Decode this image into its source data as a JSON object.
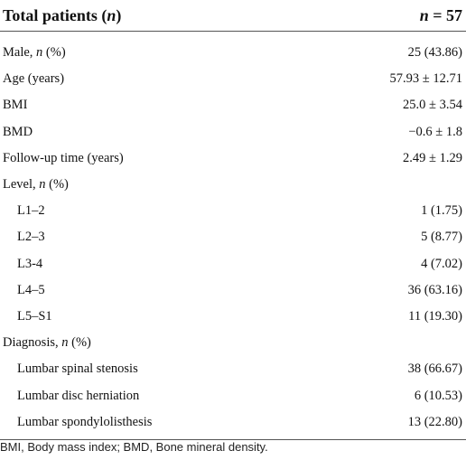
{
  "header": {
    "label": "Total patients (n)",
    "value": "n = 57"
  },
  "rows": [
    {
      "label": "Male, n (%)",
      "value": "25 (43.86)"
    },
    {
      "label": "Age (years)",
      "value": "57.93 ± 12.71"
    },
    {
      "label": "BMI",
      "value": "25.0 ± 3.54"
    },
    {
      "label": "BMD",
      "value": "−0.6 ± 1.8"
    },
    {
      "label": "Follow-up time (years)",
      "value": "2.49 ± 1.29"
    },
    {
      "label": "Level, n (%)",
      "items": [
        {
          "label": "L1–2",
          "value": "1 (1.75)"
        },
        {
          "label": "L2–3",
          "value": "5 (8.77)"
        },
        {
          "label": "L3-4",
          "value": "4 (7.02)"
        },
        {
          "label": "L4–5",
          "value": "36 (63.16)"
        },
        {
          "label": "L5–S1",
          "value": "11 (19.30)"
        }
      ]
    },
    {
      "label": "Diagnosis, n (%)",
      "items": [
        {
          "label": "Lumbar spinal stenosis",
          "value": "38 (66.67)"
        },
        {
          "label": "Lumbar disc herniation",
          "value": "6 (10.53)"
        },
        {
          "label": "Lumbar spondylolisthesis",
          "value": "13 (22.80)"
        }
      ]
    }
  ],
  "footnote": "BMI, Body mass index; BMD, Bone mineral density."
}
